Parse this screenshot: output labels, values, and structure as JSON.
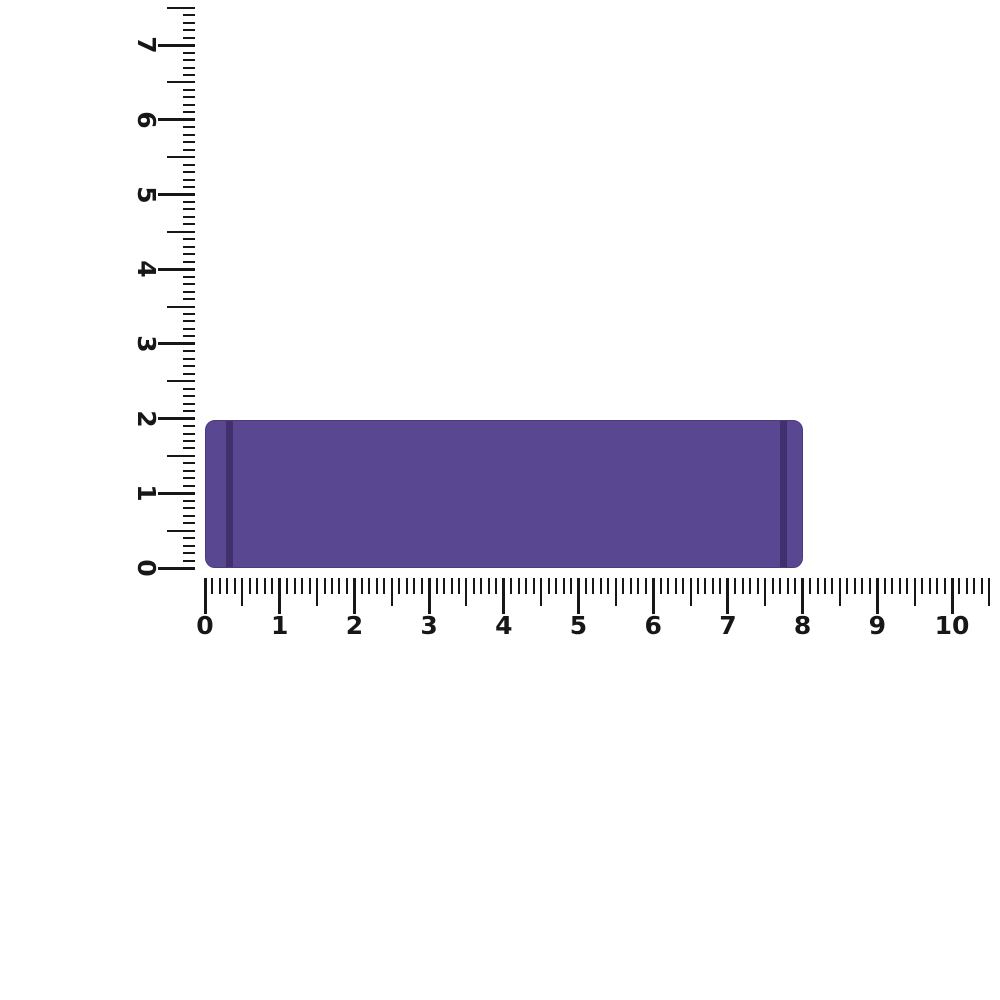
{
  "scene": {
    "background_color": "#ffffff",
    "description": "Measurement diagram: purple rectangular object aligned with a vertical and a horizontal ruler"
  },
  "object": {
    "name": "purple-bar",
    "fill_color": "#5a4792",
    "edge_color": "#4c3a7d",
    "groove_color": "#422f6e",
    "width_units": 8,
    "height_units": 2,
    "x_start_units": 0,
    "y_start_units": 0
  },
  "horizontal_ruler": {
    "orientation": "horizontal",
    "min": 0,
    "max": 10.5,
    "minor_step": 0.1,
    "medium_step": 0.5,
    "major_step": 1,
    "labels": [
      "0",
      "1",
      "2",
      "3",
      "4",
      "5",
      "6",
      "7",
      "8",
      "9",
      "10"
    ],
    "tick_color": "#171717"
  },
  "vertical_ruler": {
    "orientation": "vertical",
    "min": 0,
    "max": 7.5,
    "minor_step": 0.1,
    "medium_step": 0.5,
    "major_step": 1,
    "labels": [
      "0",
      "1",
      "2",
      "3",
      "4",
      "5",
      "6",
      "7"
    ],
    "tick_color": "#171717",
    "label_rotation_deg": 90
  }
}
